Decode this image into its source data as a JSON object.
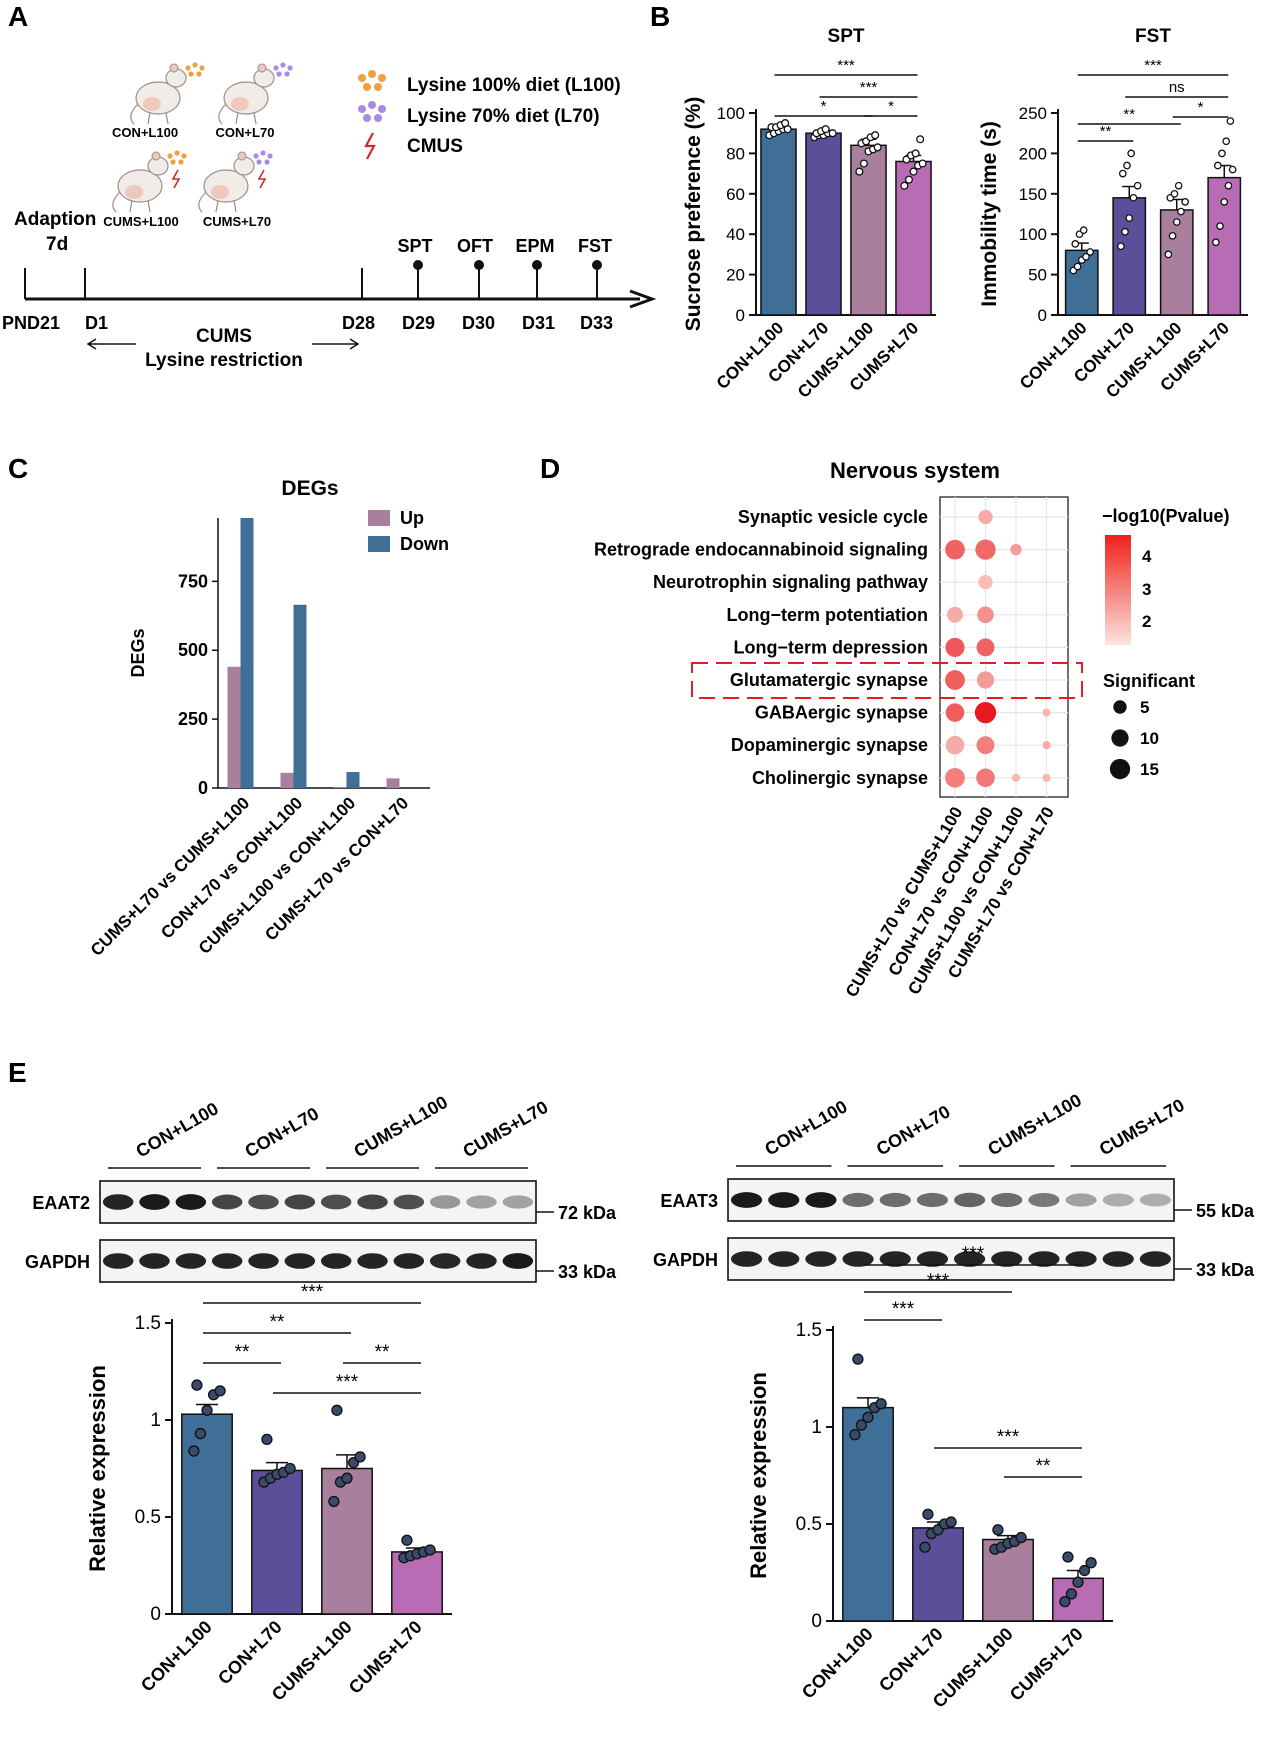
{
  "colors": {
    "con_l100": "#3f6f96",
    "con_l70": "#5c4f9a",
    "cums_l100": "#a87f9c",
    "cums_l70": "#b86cb3",
    "deg_up": "#a87f9c",
    "deg_down": "#3f6f96",
    "orange_dot": "#f0a040",
    "purple_dot": "#a98be6",
    "bolt": "#d62728",
    "highlight": "#e02020",
    "dot_low": "#f8c7c0",
    "dot_high": "#e8141a"
  },
  "panel_labels": {
    "a": "A",
    "b": "B",
    "c": "C",
    "d": "D",
    "e": "E"
  },
  "panelA": {
    "legend": [
      {
        "icon": "orange-dots",
        "label": "Lysine 100% diet (L100)"
      },
      {
        "icon": "purple-dots",
        "label": "Lysine 70% diet (L70)"
      },
      {
        "icon": "lightning-bolt",
        "label": "CMUS"
      }
    ],
    "mouse_labels": [
      "CON+L100",
      "CON+L70",
      "CUMS+L100",
      "CUMS+L70"
    ],
    "adaption": [
      "Adaption",
      "7d"
    ],
    "timeline_days": [
      "PND21",
      "D1",
      "D28",
      "D29",
      "D30",
      "D31",
      "D33"
    ],
    "tests": [
      "SPT",
      "OFT",
      "EPM",
      "FST"
    ],
    "cums_label": "CUMS",
    "lysine_label": "Lysine restriction"
  },
  "chart_data": [
    {
      "id": "spt",
      "type": "bar",
      "title": "SPT",
      "ylabel": "Sucrose preference (%)",
      "categories": [
        "CON+L100",
        "CON+L70",
        "CUMS+L100",
        "CUMS+L70"
      ],
      "values": [
        92,
        90,
        84,
        76
      ],
      "sem": [
        1,
        1,
        3,
        3
      ],
      "points": [
        [
          89,
          90,
          91,
          92,
          92,
          93,
          93,
          94,
          95
        ],
        [
          88,
          89,
          89,
          90,
          90,
          90,
          91,
          92
        ],
        [
          71,
          75,
          81,
          82,
          83,
          85,
          86,
          88,
          89
        ],
        [
          64,
          67,
          71,
          74,
          75,
          77,
          79,
          80,
          87
        ]
      ],
      "ylim": [
        0,
        100
      ],
      "yticks": [
        0,
        20,
        40,
        60,
        80,
        100
      ],
      "significance": [
        {
          "from": 0,
          "to": 3,
          "label": "***"
        },
        {
          "from": 1,
          "to": 3,
          "label": "***"
        },
        {
          "from": 0,
          "to": 2,
          "label": "*"
        },
        {
          "from": 2,
          "to": 3,
          "label": "*"
        }
      ]
    },
    {
      "id": "fst",
      "type": "bar",
      "title": "FST",
      "ylabel": "Immobility time (s)",
      "categories": [
        "CON+L100",
        "CON+L70",
        "CUMS+L100",
        "CUMS+L70"
      ],
      "values": [
        80,
        145,
        130,
        170
      ],
      "sem": [
        9,
        14,
        13,
        15
      ],
      "points": [
        [
          55,
          60,
          68,
          72,
          78,
          88,
          100,
          105
        ],
        [
          85,
          103,
          120,
          145,
          160,
          175,
          185,
          200
        ],
        [
          75,
          98,
          115,
          128,
          140,
          145,
          150,
          160
        ],
        [
          90,
          110,
          140,
          160,
          180,
          185,
          200,
          215,
          240
        ]
      ],
      "ylim": [
        0,
        250
      ],
      "yticks": [
        0,
        50,
        100,
        150,
        200,
        250
      ],
      "significance": [
        {
          "from": 0,
          "to": 3,
          "label": "***"
        },
        {
          "from": 1,
          "to": 3,
          "label": "ns"
        },
        {
          "from": 0,
          "to": 2,
          "label": "**"
        },
        {
          "from": 2,
          "to": 3,
          "label": "*"
        },
        {
          "from": 0,
          "to": 1,
          "label": "**"
        }
      ]
    },
    {
      "id": "degs",
      "type": "bar",
      "title": "DEGs",
      "ylabel": "DEGs",
      "categories": [
        "CUMS+L70 vs CUMS+L100",
        "CON+L70 vs CON+L100",
        "CUMS+L100 vs CON+L100",
        "CUMS+L70 vs CON+L70"
      ],
      "series": [
        {
          "name": "Up",
          "values": [
            440,
            55,
            3,
            35
          ]
        },
        {
          "name": "Down",
          "values": [
            980,
            665,
            58,
            0
          ]
        }
      ],
      "ylim": [
        0,
        980
      ],
      "yticks": [
        0,
        250,
        500,
        750
      ]
    },
    {
      "id": "nervous",
      "type": "scatter",
      "title": "Nervous system",
      "pathways": [
        "Synaptic vesicle cycle",
        "Retrograde endocannabinoid signaling",
        "Neurotrophin signaling pathway",
        "Long−term potentiation",
        "Long−term depression",
        "Glutamatergic synapse",
        "GABAergic synapse",
        "Dopaminergic synapse",
        "Cholinergic synapse"
      ],
      "comparisons": [
        "CUMS+L70 vs CUMS+L100",
        "CON+L70 vs CON+L100",
        "CUMS+L100 vs CON+L100",
        "CUMS+L70 vs CON+L70"
      ],
      "points": [
        {
          "pathway": 1,
          "comparison": 1,
          "count": 6,
          "logp": 2.0
        },
        {
          "pathway": 2,
          "comparison": 0,
          "count": 14,
          "logp": 3.3
        },
        {
          "pathway": 2,
          "comparison": 1,
          "count": 15,
          "logp": 3.2
        },
        {
          "pathway": 2,
          "comparison": 2,
          "count": 3,
          "logp": 2.3
        },
        {
          "pathway": 3,
          "comparison": 1,
          "count": 6,
          "logp": 1.7
        },
        {
          "pathway": 4,
          "comparison": 0,
          "count": 8,
          "logp": 2.0
        },
        {
          "pathway": 4,
          "comparison": 1,
          "count": 9,
          "logp": 2.5
        },
        {
          "pathway": 5,
          "comparison": 0,
          "count": 13,
          "logp": 3.5
        },
        {
          "pathway": 5,
          "comparison": 1,
          "count": 11,
          "logp": 3.3
        },
        {
          "pathway": 6,
          "comparison": 0,
          "count": 14,
          "logp": 3.4
        },
        {
          "pathway": 6,
          "comparison": 1,
          "count": 10,
          "logp": 2.3
        },
        {
          "pathway": 7,
          "comparison": 0,
          "count": 12,
          "logp": 3.4
        },
        {
          "pathway": 7,
          "comparison": 1,
          "count": 17,
          "logp": 4.6
        },
        {
          "pathway": 7,
          "comparison": 3,
          "count": 1,
          "logp": 1.8
        },
        {
          "pathway": 8,
          "comparison": 0,
          "count": 12,
          "logp": 2.0
        },
        {
          "pathway": 8,
          "comparison": 1,
          "count": 11,
          "logp": 2.8
        },
        {
          "pathway": 8,
          "comparison": 3,
          "count": 1,
          "logp": 2.0
        },
        {
          "pathway": 9,
          "comparison": 0,
          "count": 14,
          "logp": 2.8
        },
        {
          "pathway": 9,
          "comparison": 1,
          "count": 12,
          "logp": 2.9
        },
        {
          "pathway": 9,
          "comparison": 2,
          "count": 1,
          "logp": 1.8
        },
        {
          "pathway": 9,
          "comparison": 3,
          "count": 1,
          "logp": 1.8
        }
      ],
      "color_legend_title": "−log10(Pvalue)",
      "color_ticks": [
        4,
        3,
        2
      ],
      "size_legend_title": "Significant",
      "size_ticks": [
        5,
        10,
        15
      ],
      "highlighted": "Glutamatergic synapse"
    },
    {
      "id": "eaat2",
      "type": "bar",
      "ylabel": "Relative expression",
      "categories": [
        "CON+L100",
        "CON+L70",
        "CUMS+L100",
        "CUMS+L70"
      ],
      "values": [
        1.03,
        0.74,
        0.75,
        0.32
      ],
      "sem": [
        0.05,
        0.04,
        0.07,
        0.02
      ],
      "points": [
        [
          0.84,
          0.93,
          1.05,
          1.13,
          1.15,
          1.18
        ],
        [
          0.68,
          0.7,
          0.72,
          0.73,
          0.75,
          0.9
        ],
        [
          0.58,
          0.68,
          0.7,
          0.78,
          0.81,
          1.05
        ],
        [
          0.29,
          0.3,
          0.31,
          0.32,
          0.33,
          0.38
        ]
      ],
      "ylim": [
        0,
        1.5
      ],
      "yticks": [
        0.0,
        0.5,
        1.0,
        1.5
      ],
      "significance": [
        {
          "from": 0,
          "to": 3,
          "label": "***"
        },
        {
          "from": 0,
          "to": 2,
          "label": "**"
        },
        {
          "from": 0,
          "to": 1,
          "label": "**"
        },
        {
          "from": 2,
          "to": 3,
          "label": "**"
        },
        {
          "from": 1,
          "to": 3,
          "label": "***"
        }
      ]
    },
    {
      "id": "eaat3",
      "type": "bar",
      "ylabel": "Relative expression",
      "categories": [
        "CON+L100",
        "CON+L70",
        "CUMS+L100",
        "CUMS+L70"
      ],
      "values": [
        1.1,
        0.48,
        0.42,
        0.22
      ],
      "sem": [
        0.05,
        0.03,
        0.02,
        0.04
      ],
      "points": [
        [
          0.96,
          1.01,
          1.05,
          1.1,
          1.12,
          1.35
        ],
        [
          0.38,
          0.45,
          0.47,
          0.5,
          0.51,
          0.55
        ],
        [
          0.37,
          0.38,
          0.4,
          0.41,
          0.43,
          0.47
        ],
        [
          0.1,
          0.14,
          0.2,
          0.26,
          0.3,
          0.33
        ]
      ],
      "ylim": [
        0,
        1.5
      ],
      "yticks": [
        0.0,
        0.5,
        1.0,
        1.5
      ],
      "significance": [
        {
          "from": 0,
          "to": 3,
          "label": "***"
        },
        {
          "from": 0,
          "to": 2,
          "label": "***"
        },
        {
          "from": 0,
          "to": 1,
          "label": "***"
        },
        {
          "from": 1,
          "to": 3,
          "label": "***"
        },
        {
          "from": 2,
          "to": 3,
          "label": "**"
        }
      ]
    }
  ],
  "blots": {
    "groups": [
      "CON+L100",
      "CON+L70",
      "CUMS+L100",
      "CUMS+L70"
    ],
    "left": {
      "target": "EAAT2",
      "target_kda": "72 kDa",
      "loading": "GAPDH",
      "loading_kda": "33 kDa",
      "target_intensity": [
        0.9,
        0.95,
        0.95,
        0.75,
        0.7,
        0.75,
        0.7,
        0.75,
        0.7,
        0.35,
        0.3,
        0.3
      ],
      "loading_intensity": [
        0.9,
        0.9,
        0.9,
        0.9,
        0.9,
        0.9,
        0.9,
        0.9,
        0.9,
        0.88,
        0.9,
        0.95
      ]
    },
    "right": {
      "target": "EAAT3",
      "target_kda": "55 kDa",
      "loading": "GAPDH",
      "loading_kda": "33 kDa",
      "target_intensity": [
        0.95,
        0.95,
        0.95,
        0.55,
        0.55,
        0.55,
        0.6,
        0.55,
        0.5,
        0.3,
        0.25,
        0.25
      ],
      "loading_intensity": [
        0.9,
        0.9,
        0.9,
        0.9,
        0.9,
        0.9,
        0.9,
        0.9,
        0.9,
        0.9,
        0.9,
        0.9
      ]
    }
  }
}
